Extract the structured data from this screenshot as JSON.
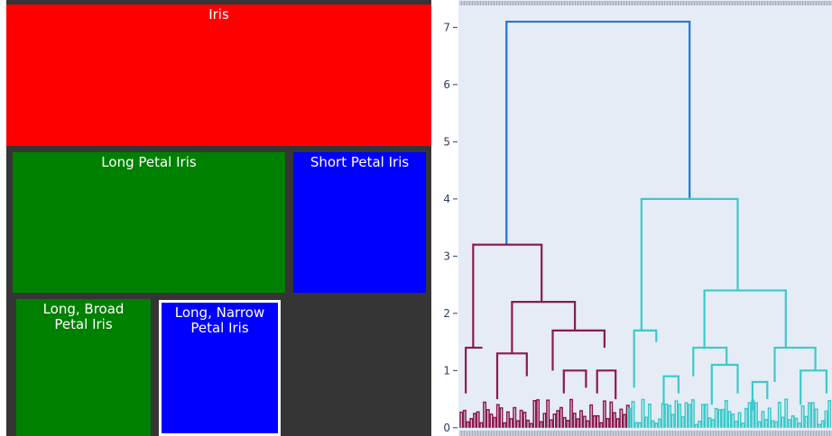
{
  "treemap": {
    "tiles": [
      {
        "id": "iris",
        "label": "Iris",
        "color": "#ff0000",
        "outline": "none"
      },
      {
        "id": "long-petal",
        "label": "Long Petal Iris",
        "color": "#008000",
        "outline": "none"
      },
      {
        "id": "short-petal",
        "label": "Short Petal Iris",
        "color": "#0000ff",
        "outline": "none"
      },
      {
        "id": "long-broad",
        "label": "Long, Broad\nPetal Iris",
        "color": "#008000",
        "outline": "none"
      },
      {
        "id": "long-narrow",
        "label": "Long, Narrow\nPetal Iris",
        "color": "#0000ff",
        "outline": "#ffffff"
      }
    ],
    "background": "#353535"
  },
  "chart_data": {
    "type": "dendrogram",
    "y_ticks": [
      0,
      1,
      2,
      3,
      4,
      5,
      6,
      7
    ],
    "ylim": [
      -0.05,
      7.4
    ],
    "plot_bg": "#e5ecf6",
    "tick_color": "#2a3f5f",
    "link_colors": {
      "root": "#1f77d4",
      "cluster_a": "#8b1a4f",
      "cluster_b": "#3cc9c9"
    },
    "links": [
      {
        "x": [
          0.125,
          0.125,
          0.62,
          0.62
        ],
        "y": [
          3.2,
          7.1,
          7.1,
          4.0
        ],
        "color": "root"
      },
      {
        "x": [
          0.035,
          0.035,
          0.22,
          0.22
        ],
        "y": [
          1.4,
          3.2,
          3.2,
          2.2
        ],
        "color": "cluster_a"
      },
      {
        "x": [
          0.14,
          0.14,
          0.31,
          0.31
        ],
        "y": [
          1.3,
          2.2,
          2.2,
          1.7
        ],
        "color": "cluster_a"
      },
      {
        "x": [
          0.25,
          0.25,
          0.39,
          0.39
        ],
        "y": [
          1.0,
          1.7,
          1.7,
          1.4
        ],
        "color": "cluster_a"
      },
      {
        "x": [
          0.49,
          0.49,
          0.75,
          0.75
        ],
        "y": [
          1.7,
          4.0,
          4.0,
          2.4
        ],
        "color": "cluster_b"
      },
      {
        "x": [
          0.66,
          0.66,
          0.88,
          0.88
        ],
        "y": [
          1.4,
          2.4,
          2.4,
          1.4
        ],
        "color": "cluster_b"
      },
      {
        "x": [
          0.63,
          0.63,
          0.72,
          0.72
        ],
        "y": [
          0.9,
          1.4,
          1.4,
          1.1
        ],
        "color": "cluster_b"
      },
      {
        "x": [
          0.85,
          0.85,
          0.96,
          0.96
        ],
        "y": [
          0.8,
          1.4,
          1.4,
          1.0
        ],
        "color": "cluster_b"
      },
      {
        "x": [
          0.47,
          0.47,
          0.53,
          0.53
        ],
        "y": [
          0.7,
          1.7,
          1.7,
          1.5
        ],
        "color": "cluster_b"
      },
      {
        "x": [
          0.015,
          0.015,
          0.06,
          0.06
        ],
        "y": [
          0.6,
          1.4,
          1.4,
          1.4
        ],
        "color": "cluster_a"
      },
      {
        "x": [
          0.1,
          0.1,
          0.18,
          0.18
        ],
        "y": [
          0.5,
          1.3,
          1.3,
          0.9
        ],
        "color": "cluster_a"
      },
      {
        "x": [
          0.28,
          0.28,
          0.34,
          0.34
        ],
        "y": [
          0.6,
          1.0,
          1.0,
          0.7
        ],
        "color": "cluster_a"
      },
      {
        "x": [
          0.37,
          0.37,
          0.42,
          0.42
        ],
        "y": [
          0.6,
          1.0,
          1.0,
          0.5
        ],
        "color": "cluster_a"
      },
      {
        "x": [
          0.55,
          0.55,
          0.59,
          0.59
        ],
        "y": [
          0.4,
          0.9,
          0.9,
          0.6
        ],
        "color": "cluster_b"
      },
      {
        "x": [
          0.68,
          0.68,
          0.75,
          0.75
        ],
        "y": [
          0.4,
          1.1,
          1.1,
          0.6
        ],
        "color": "cluster_b"
      },
      {
        "x": [
          0.79,
          0.79,
          0.83,
          0.83
        ],
        "y": [
          0.3,
          0.8,
          0.8,
          0.5
        ],
        "color": "cluster_b"
      },
      {
        "x": [
          0.92,
          0.92,
          0.99,
          0.99
        ],
        "y": [
          0.4,
          1.0,
          1.0,
          0.6
        ],
        "color": "cluster_b"
      }
    ]
  }
}
